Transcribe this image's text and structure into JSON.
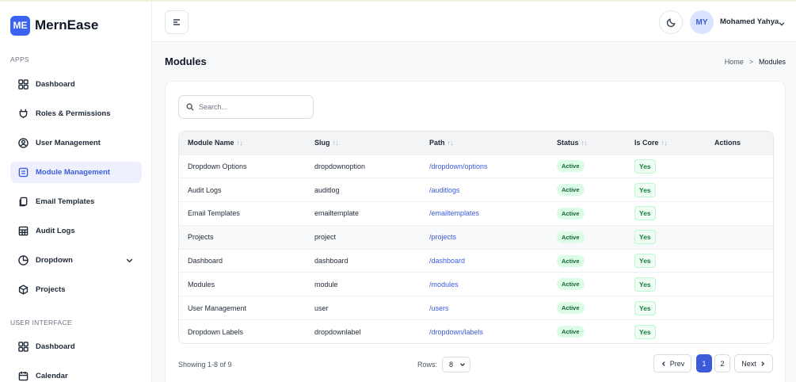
{
  "brand": {
    "logo_text": "ME",
    "name": "MernEase"
  },
  "sidebar": {
    "sections": [
      {
        "label": "APPS",
        "items": [
          {
            "label": "Dashboard",
            "icon": "grid-icon"
          },
          {
            "label": "Roles & Permissions",
            "icon": "plug-icon"
          },
          {
            "label": "User Management",
            "icon": "user-circle-icon"
          },
          {
            "label": "Module Management",
            "icon": "list-box-icon",
            "active": true
          },
          {
            "label": "Email Templates",
            "icon": "copy-icon"
          },
          {
            "label": "Audit Logs",
            "icon": "table-icon"
          },
          {
            "label": "Dropdown",
            "icon": "pie-chart-icon",
            "has_submenu": true
          },
          {
            "label": "Projects",
            "icon": "box-icon"
          }
        ]
      },
      {
        "label": "USER INTERFACE",
        "items": [
          {
            "label": "Dashboard",
            "icon": "grid-icon"
          },
          {
            "label": "Calendar",
            "icon": "calendar-icon"
          }
        ]
      }
    ]
  },
  "header": {
    "user": {
      "initials": "MY",
      "name": "Mohamed Yahya"
    }
  },
  "page": {
    "title": "Modules",
    "breadcrumb": [
      "Home",
      "Modules"
    ]
  },
  "search": {
    "placeholder": "Search..."
  },
  "table": {
    "columns": [
      {
        "label": "Module Name",
        "sortable": true
      },
      {
        "label": "Slug",
        "sortable": true
      },
      {
        "label": "Path",
        "sortable": true
      },
      {
        "label": "Status",
        "sortable": true
      },
      {
        "label": "Is Core",
        "sortable": true
      },
      {
        "label": "Actions",
        "sortable": false
      }
    ],
    "sort_glyph": "↑↓",
    "rows": [
      {
        "name": "Dropdown Options",
        "slug": "dropdownoption",
        "path": "/dropdown/options",
        "status": "Active",
        "is_core": "Yes"
      },
      {
        "name": "Audit Logs",
        "slug": "auditlog",
        "path": "/auditlogs",
        "status": "Active",
        "is_core": "Yes"
      },
      {
        "name": "Email Templates",
        "slug": "emailtemplate",
        "path": "/emailtemplates",
        "status": "Active",
        "is_core": "Yes"
      },
      {
        "name": "Projects",
        "slug": "project",
        "path": "/projects",
        "status": "Active",
        "is_core": "Yes",
        "highlighted": true
      },
      {
        "name": "Dashboard",
        "slug": "dashboard",
        "path": "/dashboard",
        "status": "Active",
        "is_core": "Yes"
      },
      {
        "name": "Modules",
        "slug": "module",
        "path": "/modules",
        "status": "Active",
        "is_core": "Yes"
      },
      {
        "name": "User Management",
        "slug": "user",
        "path": "/users",
        "status": "Active",
        "is_core": "Yes"
      },
      {
        "name": "Dropdown Labels",
        "slug": "dropdownlabel",
        "path": "/dropdown/labels",
        "status": "Active",
        "is_core": "Yes"
      }
    ]
  },
  "footer": {
    "showing": "Showing 1-8 of 9",
    "rows_label": "Rows:",
    "rows_value": "8",
    "prev_label": "Prev",
    "next_label": "Next",
    "pages": [
      "1",
      "2"
    ],
    "current_page": "1"
  },
  "colors": {
    "accent": "#3b5bdb",
    "logo_bg": "#3b63f0",
    "active_badge_bg": "#dcfce7",
    "yes_badge_bg": "#f0fdf4"
  }
}
